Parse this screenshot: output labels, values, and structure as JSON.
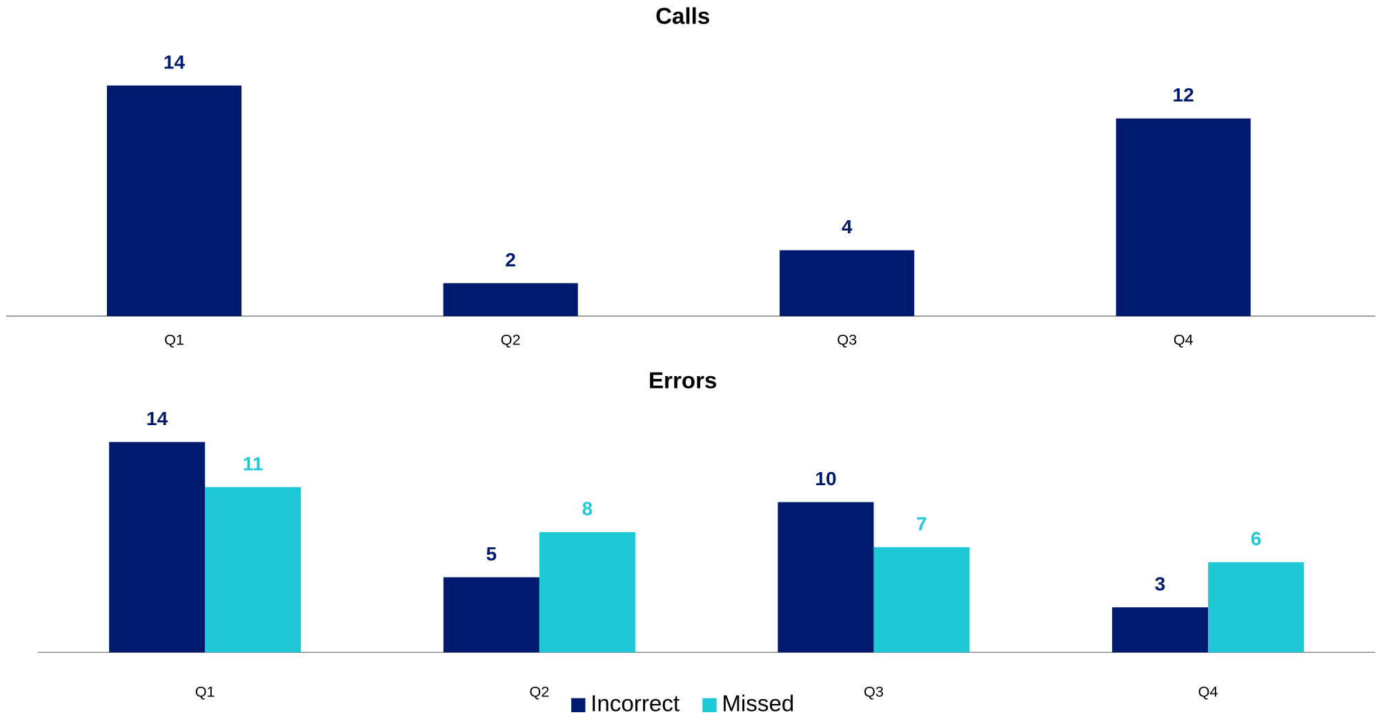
{
  "chart_data": [
    {
      "type": "bar",
      "title": "Calls",
      "categories": [
        "Q1",
        "Q2",
        "Q3",
        "Q4"
      ],
      "values": [
        14,
        2,
        4,
        12
      ],
      "color": "#001a6e"
    },
    {
      "type": "grouped_bar",
      "title": "Errors",
      "categories": [
        "Q1",
        "Q2",
        "Q3",
        "Q4"
      ],
      "series": [
        {
          "name": "Incorrect",
          "color": "#001a6e",
          "values": [
            14,
            5,
            10,
            3
          ]
        },
        {
          "name": "Missed",
          "color": "#1ec8d4",
          "values": [
            11,
            8,
            7,
            6
          ]
        }
      ],
      "legend": "bottom"
    }
  ]
}
